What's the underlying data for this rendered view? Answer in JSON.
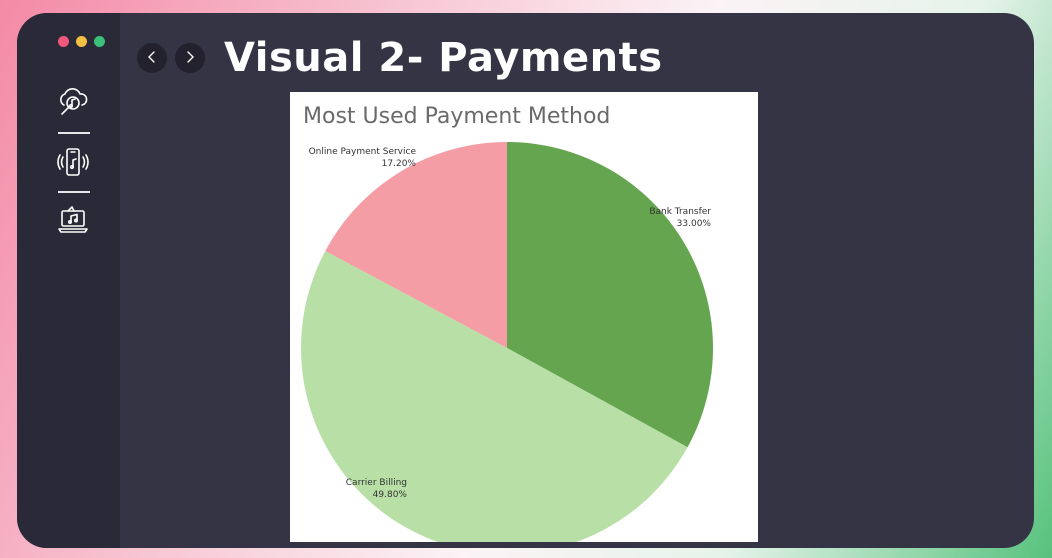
{
  "header": {
    "title": "Visual 2- Payments"
  },
  "window_controls": {
    "colors": [
      "#f0577d",
      "#f2c043",
      "#3bc07a"
    ]
  },
  "sidebar": {
    "items": [
      {
        "icon": "cloud-music-search-icon"
      },
      {
        "icon": "phone-music-icon"
      },
      {
        "icon": "laptop-music-icon"
      }
    ]
  },
  "nav": {
    "back_icon": "chevron-left-icon",
    "forward_icon": "chevron-right-icon"
  },
  "chart_data": {
    "type": "pie",
    "title": "Most Used Payment Method",
    "slices": [
      {
        "label": "Bank Transfer",
        "value": 33.0,
        "display": "33.00%",
        "color": "#66a550"
      },
      {
        "label": "Carrier Billing",
        "value": 49.8,
        "display": "49.80%",
        "color": "#b8e0a6"
      },
      {
        "label": "Online Payment Service",
        "value": 17.2,
        "display": "17.20%",
        "color": "#f49da5"
      }
    ]
  }
}
